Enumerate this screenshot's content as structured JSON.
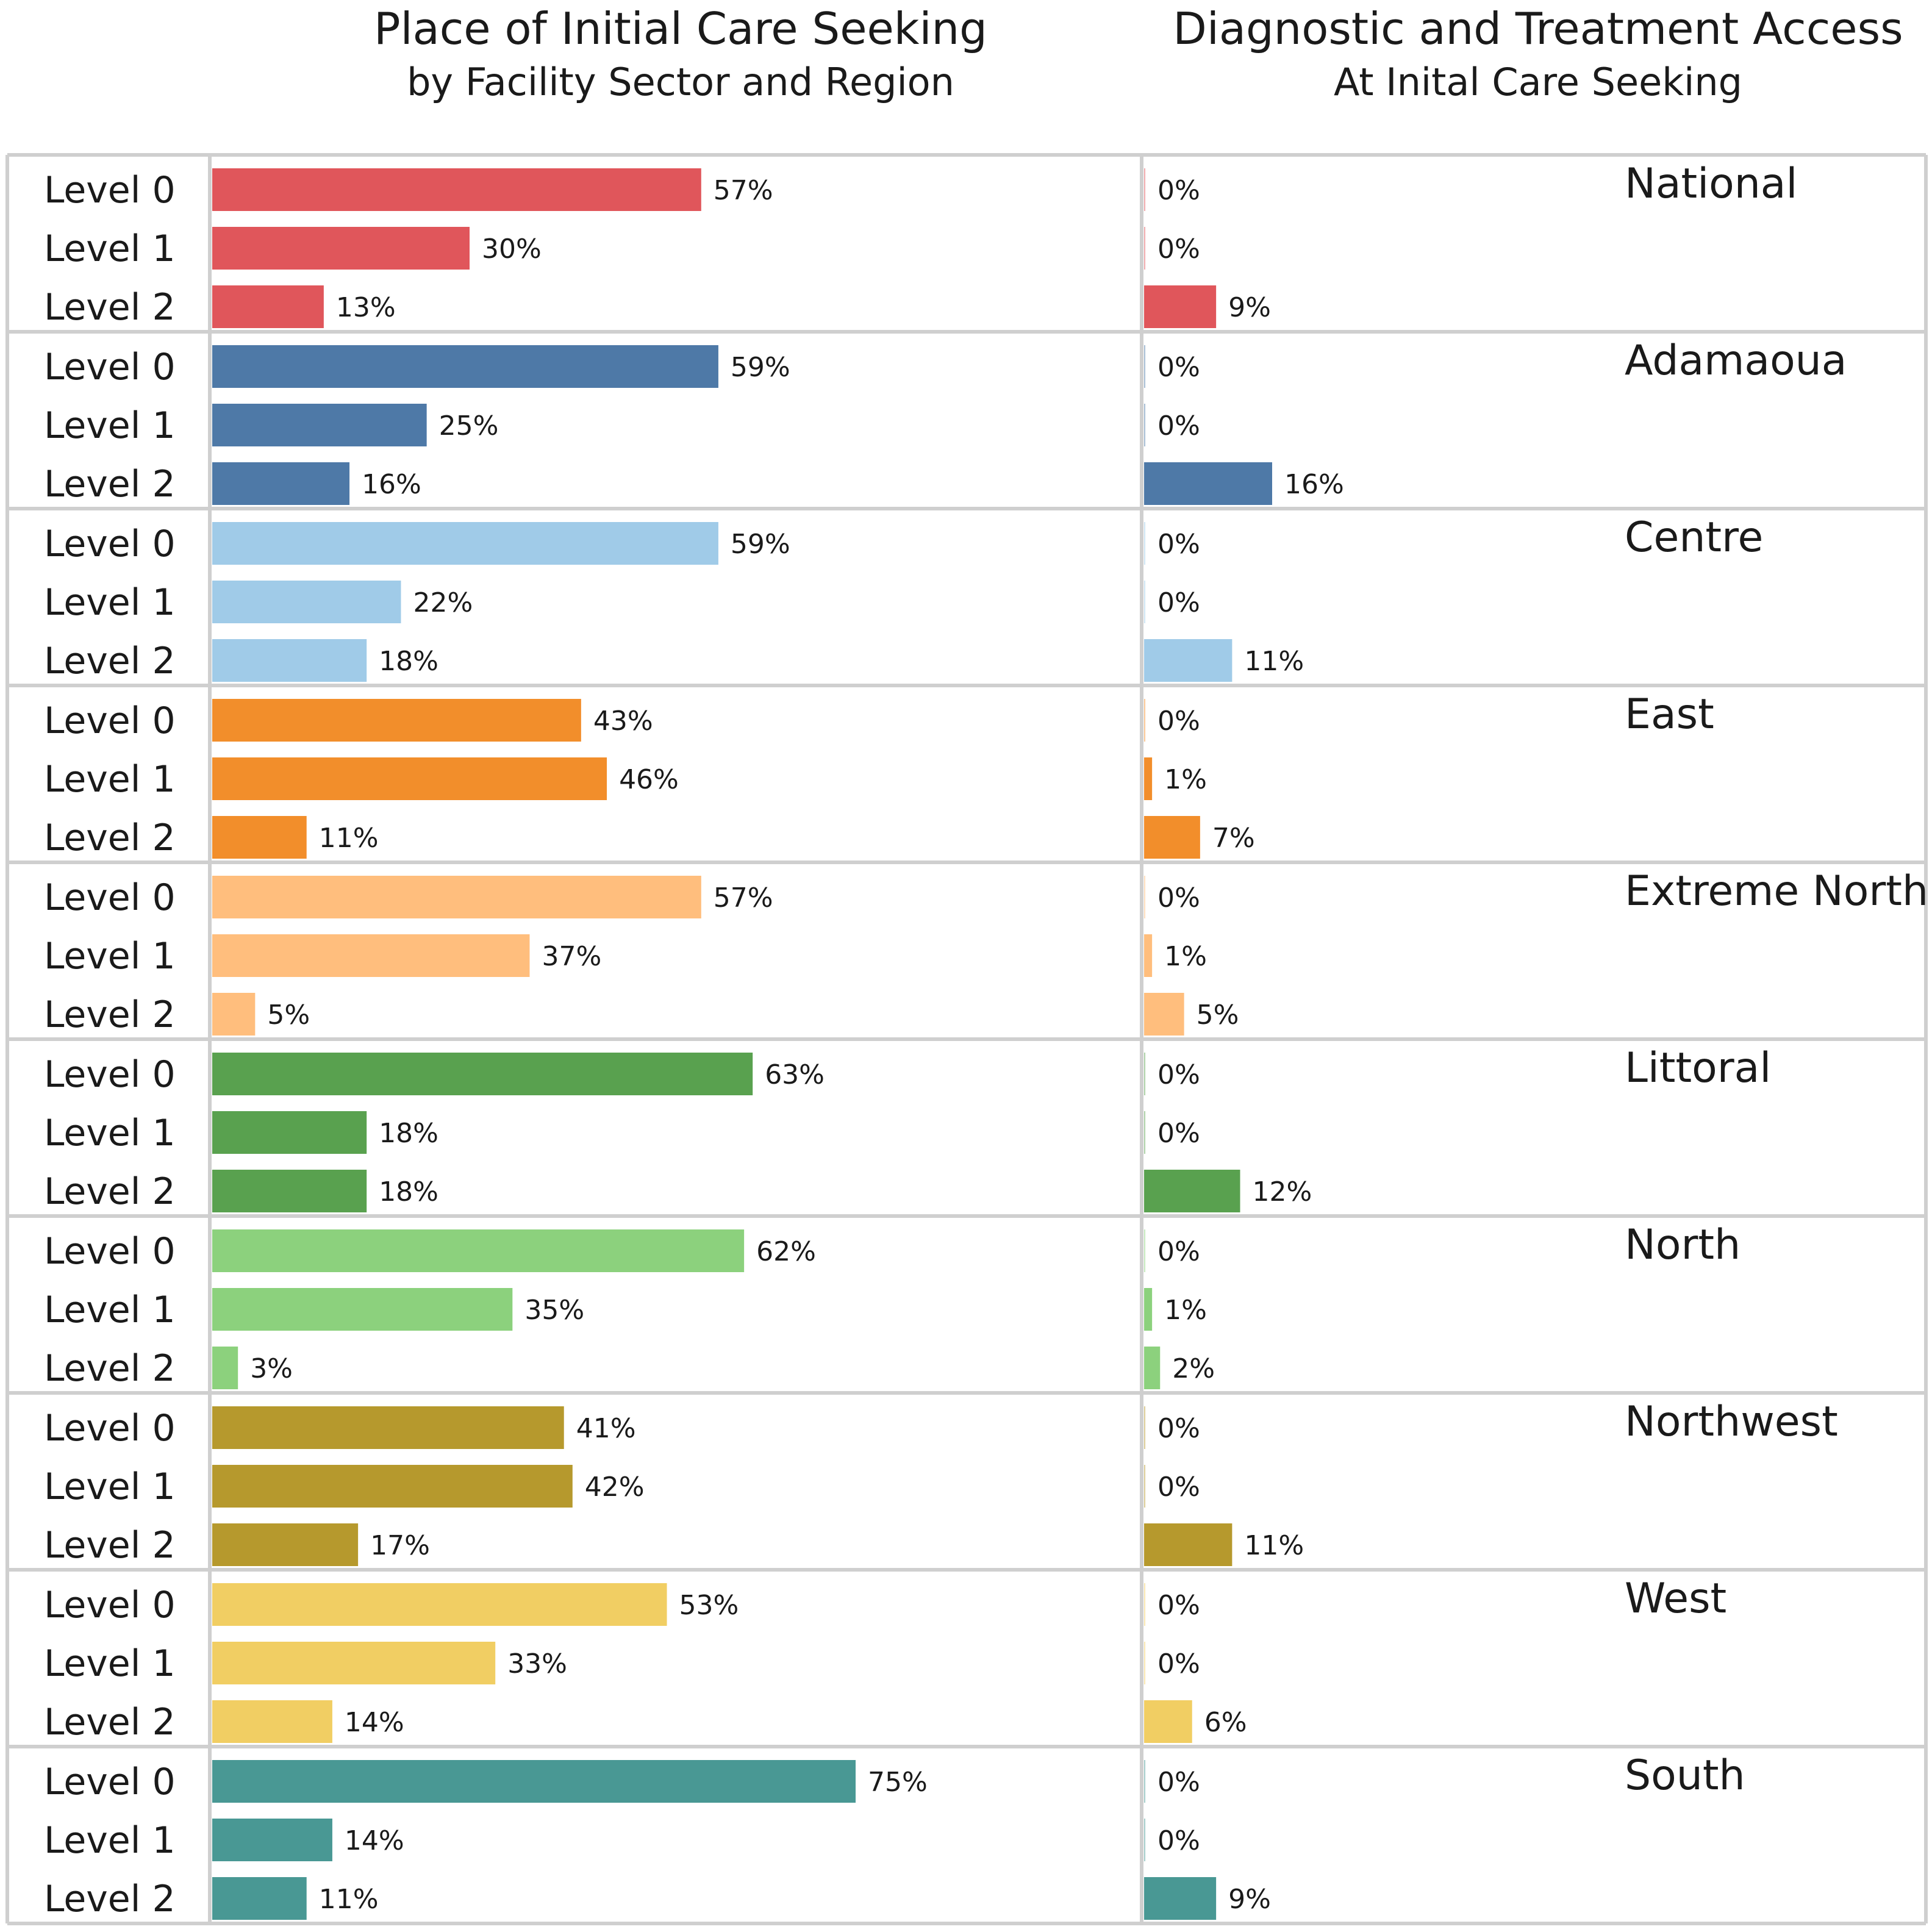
{
  "chart_data": [
    {
      "type": "bar",
      "orientation": "horizontal",
      "title": "Place of  Initial Care Seeking",
      "subtitle": "by Facility Sector and Region",
      "categories": [
        "Level 0",
        "Level 1",
        "Level 2"
      ],
      "xlim": [
        0,
        100
      ],
      "unit": "%",
      "series": [
        {
          "name": "National",
          "values": [
            57,
            30,
            13
          ]
        },
        {
          "name": "Adamaoua",
          "values": [
            59,
            25,
            16
          ]
        },
        {
          "name": "Centre",
          "values": [
            59,
            22,
            18
          ]
        },
        {
          "name": "East",
          "values": [
            43,
            46,
            11
          ]
        },
        {
          "name": "Extreme North",
          "values": [
            57,
            37,
            5
          ]
        },
        {
          "name": "Littoral",
          "values": [
            63,
            18,
            18
          ]
        },
        {
          "name": "North",
          "values": [
            62,
            35,
            3
          ]
        },
        {
          "name": "Northwest",
          "values": [
            41,
            42,
            17
          ]
        },
        {
          "name": "West",
          "values": [
            53,
            33,
            14
          ]
        },
        {
          "name": "South",
          "values": [
            75,
            14,
            11
          ]
        }
      ]
    },
    {
      "type": "bar",
      "orientation": "horizontal",
      "title": "Diagnostic and Treatment Access",
      "subtitle": "At Inital Care Seeking",
      "categories": [
        "Level 0",
        "Level 1",
        "Level 2"
      ],
      "xlim": [
        0,
        100
      ],
      "unit": "%",
      "series": [
        {
          "name": "National",
          "values": [
            0,
            0,
            9
          ]
        },
        {
          "name": "Adamaoua",
          "values": [
            0,
            0,
            16
          ]
        },
        {
          "name": "Centre",
          "values": [
            0,
            0,
            11
          ]
        },
        {
          "name": "East",
          "values": [
            0,
            1,
            7
          ]
        },
        {
          "name": "Extreme North",
          "values": [
            0,
            1,
            5
          ]
        },
        {
          "name": "Littoral",
          "values": [
            0,
            0,
            12
          ]
        },
        {
          "name": "North",
          "values": [
            0,
            1,
            2
          ]
        },
        {
          "name": "Northwest",
          "values": [
            0,
            0,
            11
          ]
        },
        {
          "name": "West",
          "values": [
            0,
            0,
            6
          ]
        },
        {
          "name": "South",
          "values": [
            0,
            0,
            9
          ]
        }
      ]
    }
  ],
  "colors": [
    "#e0565b",
    "#4e79a7",
    "#a0cbe8",
    "#f28e2b",
    "#ffbe7d",
    "#59a14f",
    "#8cd17d",
    "#b6992d",
    "#f1ce63",
    "#499894"
  ]
}
